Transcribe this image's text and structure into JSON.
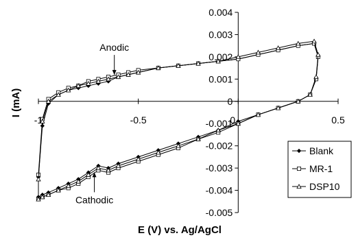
{
  "chart_data": {
    "type": "line",
    "xlabel": "E (V) vs. Ag/AgCl",
    "ylabel": "I (mA)",
    "xlim": [
      -1.0,
      0.5
    ],
    "ylim": [
      -0.005,
      0.004
    ],
    "x_ticks": [
      {
        "value": -1.0,
        "label": "-1"
      },
      {
        "value": -0.5,
        "label": "-0.5"
      },
      {
        "value": 0.0,
        "label": "0"
      },
      {
        "value": 0.5,
        "label": "0.5"
      }
    ],
    "y_ticks": [
      {
        "value": 0.004,
        "label": "0.004"
      },
      {
        "value": 0.003,
        "label": "0.003"
      },
      {
        "value": 0.002,
        "label": "0.002"
      },
      {
        "value": 0.001,
        "label": "0.001"
      },
      {
        "value": 0.0,
        "label": "0"
      },
      {
        "value": -0.001,
        "label": "-0.001"
      },
      {
        "value": -0.002,
        "label": "-0.002"
      },
      {
        "value": -0.003,
        "label": "-0.003"
      },
      {
        "value": -0.004,
        "label": "-0.004"
      },
      {
        "value": -0.005,
        "label": "-0.005"
      }
    ],
    "legend_position": "bottom-right",
    "annotations": [
      {
        "text": "Anodic",
        "x": -0.62,
        "y": 0.0011
      },
      {
        "text": "Cathodic",
        "x": -0.72,
        "y": -0.0031
      }
    ],
    "series": [
      {
        "name": "Blank",
        "marker": "diamond",
        "x": [
          -1.0,
          -0.98,
          -0.95,
          -0.9,
          -0.85,
          -0.8,
          -0.75,
          -0.7,
          -0.65,
          -0.6,
          -0.55,
          -0.5,
          -0.4,
          -0.3,
          -0.2,
          -0.1,
          0.0,
          0.1,
          0.2,
          0.3,
          0.38,
          0.4,
          0.39,
          0.36,
          0.3,
          0.2,
          0.1,
          0.0,
          -0.1,
          -0.2,
          -0.3,
          -0.4,
          -0.5,
          -0.6,
          -0.65,
          -0.7,
          -0.75,
          -0.8,
          -0.85,
          -0.9,
          -0.95,
          -0.98,
          -1.0
        ],
        "y": [
          -0.0034,
          -0.0011,
          -0.0001,
          0.0003,
          0.0005,
          0.0006,
          0.0007,
          0.0008,
          0.0009,
          0.0011,
          0.0012,
          0.0013,
          0.0015,
          0.0016,
          0.0017,
          0.0018,
          0.0019,
          0.0021,
          0.0023,
          0.0025,
          0.0026,
          0.002,
          0.001,
          0.0003,
          0.0,
          -0.0003,
          -0.0006,
          -0.0009,
          -0.0013,
          -0.0016,
          -0.0019,
          -0.0022,
          -0.0025,
          -0.0028,
          -0.003,
          -0.0029,
          -0.0032,
          -0.0035,
          -0.0037,
          -0.0039,
          -0.0041,
          -0.0042,
          -0.0043
        ]
      },
      {
        "name": "MR-1",
        "marker": "square",
        "x": [
          -1.0,
          -0.98,
          -0.95,
          -0.9,
          -0.85,
          -0.8,
          -0.75,
          -0.7,
          -0.65,
          -0.6,
          -0.55,
          -0.5,
          -0.4,
          -0.3,
          -0.2,
          -0.1,
          0.0,
          0.1,
          0.2,
          0.3,
          0.38,
          0.4,
          0.39,
          0.36,
          0.3,
          0.2,
          0.1,
          0.0,
          -0.1,
          -0.2,
          -0.3,
          -0.4,
          -0.5,
          -0.6,
          -0.65,
          -0.7,
          -0.75,
          -0.8,
          -0.85,
          -0.9,
          -0.95,
          -0.98,
          -1.0
        ],
        "y": [
          -0.0033,
          -0.0008,
          0.0001,
          0.0004,
          0.0006,
          0.0007,
          0.0009,
          0.001,
          0.0011,
          0.0012,
          0.0013,
          0.0014,
          0.0015,
          0.0016,
          0.0017,
          0.0018,
          0.0019,
          0.0021,
          0.0023,
          0.0025,
          0.0026,
          0.002,
          0.001,
          0.0003,
          0.0,
          -0.0003,
          -0.0006,
          -0.001,
          -0.0014,
          -0.0017,
          -0.0021,
          -0.0024,
          -0.0027,
          -0.003,
          -0.0032,
          -0.0031,
          -0.0034,
          -0.0037,
          -0.0039,
          -0.004,
          -0.0042,
          -0.0043,
          -0.0044
        ]
      },
      {
        "name": "DSP10",
        "marker": "triangle",
        "x": [
          -1.0,
          -0.98,
          -0.95,
          -0.9,
          -0.85,
          -0.8,
          -0.75,
          -0.7,
          -0.65,
          -0.6,
          -0.55,
          -0.5,
          -0.4,
          -0.3,
          -0.2,
          -0.1,
          0.0,
          0.1,
          0.2,
          0.3,
          0.38,
          0.4,
          0.39,
          0.36,
          0.3,
          0.2,
          0.1,
          0.0,
          -0.1,
          -0.2,
          -0.3,
          -0.4,
          -0.5,
          -0.6,
          -0.65,
          -0.7,
          -0.75,
          -0.8,
          -0.85,
          -0.9,
          -0.95,
          -0.98,
          -1.0
        ],
        "y": [
          -0.0035,
          -0.0009,
          0.0,
          0.0003,
          0.0005,
          0.0007,
          0.0008,
          0.0009,
          0.001,
          0.0011,
          0.0012,
          0.0013,
          0.0015,
          0.0016,
          0.0017,
          0.0018,
          0.002,
          0.0022,
          0.0024,
          0.0026,
          0.0027,
          0.0021,
          0.0011,
          0.0003,
          0.0,
          -0.0003,
          -0.0006,
          -0.001,
          -0.0013,
          -0.0017,
          -0.002,
          -0.0023,
          -0.0026,
          -0.0029,
          -0.0031,
          -0.003,
          -0.0033,
          -0.0036,
          -0.0038,
          -0.004,
          -0.0042,
          -0.0043,
          -0.0044
        ]
      }
    ]
  }
}
